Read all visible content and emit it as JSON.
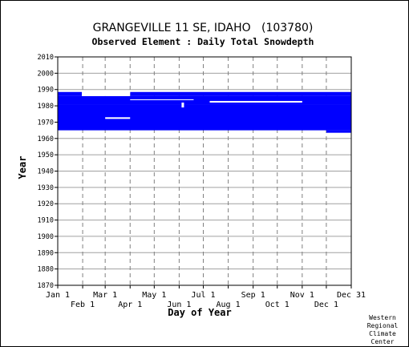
{
  "chart_data": {
    "type": "heatmap",
    "title": "GRANGEVILLE 11 SE, IDAHO   (103780)",
    "subtitle": "Observed Element : Daily Total Snowdepth",
    "xlabel": "Day of Year",
    "ylabel": "Year",
    "xlim": [
      1,
      366
    ],
    "ylim": [
      1870,
      2010
    ],
    "grid": true,
    "fill_color": "#0000ff",
    "x_ticks_upper": [
      {
        "label": "Jan 1",
        "day": 1
      },
      {
        "label": "Mar 1",
        "day": 60
      },
      {
        "label": "May 1",
        "day": 121
      },
      {
        "label": "Jul 1",
        "day": 182
      },
      {
        "label": "Sep 1",
        "day": 244
      },
      {
        "label": "Nov 1",
        "day": 305
      },
      {
        "label": "Dec 31",
        "day": 366
      }
    ],
    "x_ticks_lower": [
      {
        "label": "Feb 1",
        "day": 32
      },
      {
        "label": "Apr 1",
        "day": 91
      },
      {
        "label": "Jun 1",
        "day": 152
      },
      {
        "label": "Aug 1",
        "day": 213
      },
      {
        "label": "Oct 1",
        "day": 274
      },
      {
        "label": "Dec 1",
        "day": 335
      }
    ],
    "y_ticks": [
      "2010",
      "2000",
      "1990",
      "1980",
      "1970",
      "1960",
      "1950",
      "1940",
      "1930",
      "1920",
      "1910",
      "1900",
      "1890",
      "1880",
      "1870"
    ],
    "data_blocks": [
      {
        "start_day": 1,
        "end_day": 366,
        "start_year": 1965,
        "end_year": 1981
      },
      {
        "start_day": 1,
        "end_day": 366,
        "start_year": 1981,
        "end_year": 1986
      },
      {
        "start_day": 1,
        "end_day": 31,
        "start_year": 1986,
        "end_year": 1988.5
      },
      {
        "start_day": 91,
        "end_day": 366,
        "start_year": 1986,
        "end_year": 1988.5
      },
      {
        "start_day": 335,
        "end_day": 366,
        "start_year": 1963.5,
        "end_year": 1965
      }
    ],
    "data_gaps": [
      {
        "start_day": 31,
        "end_day": 91,
        "start_year": 1986,
        "end_year": 1988.5
      },
      {
        "start_day": 60,
        "end_day": 91,
        "start_year": 1972,
        "end_year": 1973
      },
      {
        "start_day": 91,
        "end_day": 170,
        "start_year": 1983.5,
        "end_year": 1984
      },
      {
        "start_day": 190,
        "end_day": 305,
        "start_year": 1982,
        "end_year": 1983
      },
      {
        "start_day": 155,
        "end_day": 158,
        "start_year": 1979,
        "end_year": 1982
      }
    ]
  },
  "credit": [
    "Western",
    "Regional",
    "Climate",
    "Center"
  ]
}
